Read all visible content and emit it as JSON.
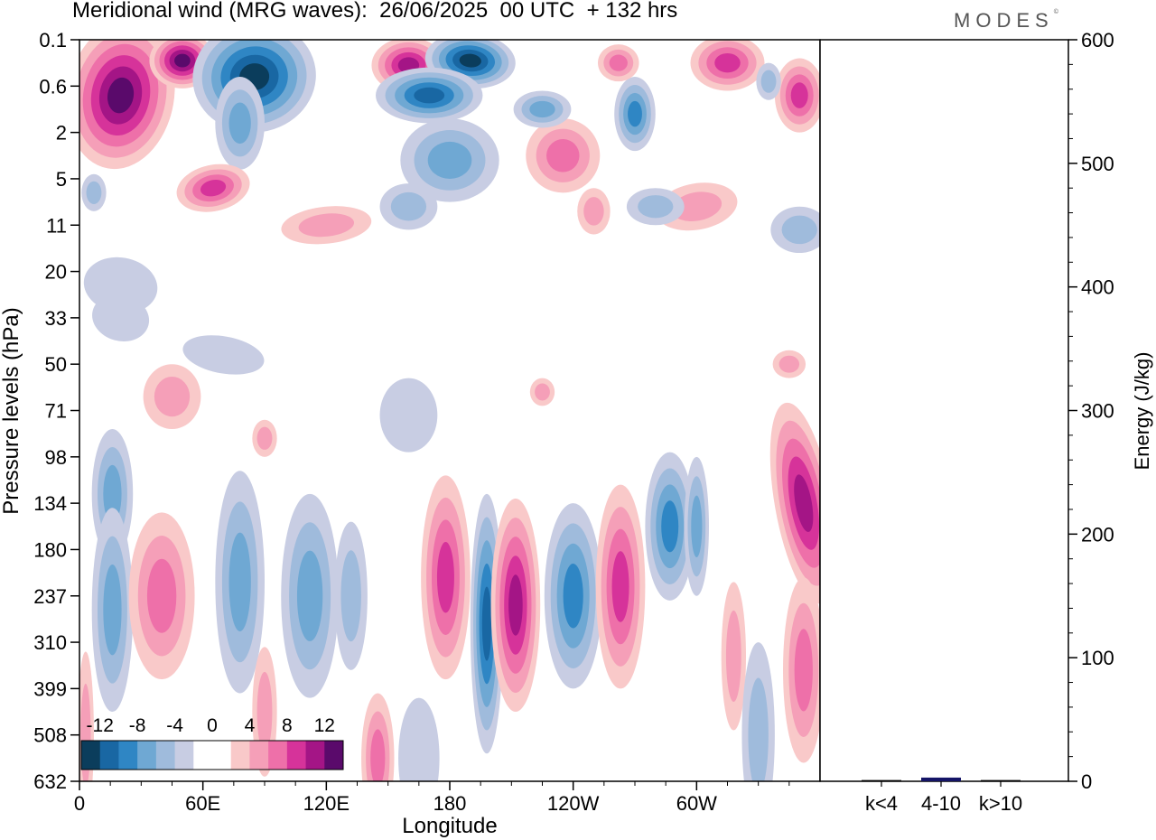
{
  "title": "Meridional wind (MRG waves):  26/06/2025  00 UTC  + 132 hrs",
  "logo": "MODES",
  "logo_mark": "©",
  "colors": {
    "blue": [
      "#0b3d5c",
      "#1967a3",
      "#2f86c4",
      "#6fa8d3",
      "#9fbbdc",
      "#c8cde3"
    ],
    "pink": [
      "#f9c9c9",
      "#f59fb8",
      "#ee70a9",
      "#d6339a",
      "#a41586",
      "#5a0a6b"
    ],
    "bar": "#141466"
  },
  "chart_data": [
    {
      "type": "heatmap",
      "subject": "meridional wind anomaly (MRG waves)",
      "xlabel": "Longitude",
      "ylabel": "Pressure levels (hPa)",
      "x_ticks": [
        "0",
        "60E",
        "120E",
        "180",
        "120W",
        "60W"
      ],
      "y_ticks": [
        "0.1",
        "0.6",
        "2",
        "5",
        "11",
        "20",
        "33",
        "50",
        "71",
        "98",
        "134",
        "180",
        "237",
        "310",
        "399",
        "508",
        "632"
      ],
      "colorbar_ticks": [
        "-12",
        "-8",
        "-4",
        "0",
        "4",
        "8",
        "12"
      ],
      "notable_features": [
        {
          "lon": 20,
          "level": "0.6-2",
          "value": 14
        },
        {
          "lon": 50,
          "level": "0.1",
          "value": 13
        },
        {
          "lon": 75,
          "level": "0.6",
          "value": -14
        },
        {
          "lon": 165,
          "level": "0.1",
          "value": -14
        },
        {
          "lon": 178,
          "level": "180",
          "value": 8
        },
        {
          "lon": 198,
          "level": "237",
          "value": -11
        },
        {
          "lon": 212,
          "level": "180-237",
          "value": 11
        },
        {
          "lon": 240,
          "level": "180-237",
          "value": -10
        },
        {
          "lon": 263,
          "level": "180",
          "value": 9
        },
        {
          "lon": 287,
          "level": "134",
          "value": -10
        },
        {
          "lon": 352,
          "level": "98",
          "value": 12
        }
      ]
    },
    {
      "type": "bar",
      "categories": [
        "k<4",
        "4-10",
        "k>10"
      ],
      "values": [
        1,
        3,
        1
      ],
      "ylabel": "Energy (J/kg)",
      "ylim": [
        0,
        600
      ],
      "y_ticks": [
        "0",
        "100",
        "200",
        "300",
        "400",
        "500",
        "600"
      ]
    }
  ]
}
